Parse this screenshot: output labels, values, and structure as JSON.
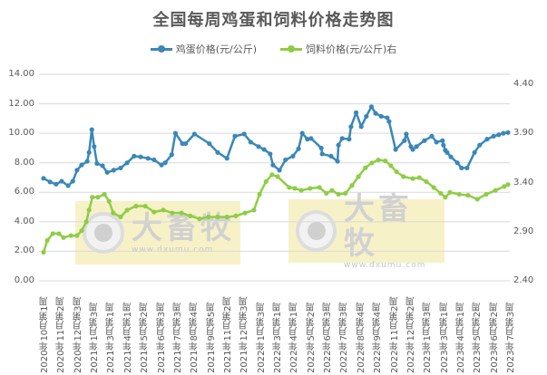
{
  "chart_data": {
    "type": "line",
    "title": "全国每周鸡蛋和饲料价格走势图",
    "xlabel": "",
    "ylabel": "",
    "left_axis": {
      "ticks": [
        "0.00",
        "2.00",
        "4.00",
        "6.00",
        "8.00",
        "10.00",
        "12.00",
        "14.00"
      ],
      "range": [
        0,
        14
      ]
    },
    "right_axis": {
      "ticks": [
        "2.40",
        "2.90",
        "3.40",
        "3.90",
        "4.40"
      ],
      "range": [
        2.4,
        4.4
      ]
    },
    "grid": true,
    "legend_position": "top",
    "categories": [
      "2020年10月第1周",
      "2020年11月第2周",
      "2020年12月第3周",
      "2021年1月第3周",
      "2021年3月第1周",
      "2021年4月第1周",
      "2021年5月第2周",
      "2021年6月第3周",
      "2021年7月第3周",
      "2021年8月第4周",
      "2021年9月第5周",
      "2021年11月第2周",
      "2021年12月第3周",
      "2022年1月第3周",
      "2022年3月第1周",
      "2022年4月第1周",
      "2022年5月第2周",
      "2022年6月第3周",
      "2022年7月第3周",
      "2022年8月第4周",
      "2022年9月第4周",
      "2022年11月第2周",
      "2022年12月第2周",
      "2023年1月第3周",
      "2023年3月第1周",
      "2023年4月第1周",
      "2023年5月第2周",
      "2023年6月第2周",
      "2023年7月第3周"
    ],
    "series": [
      {
        "name": "鸡蛋价格(元/公斤)",
        "axis": "left",
        "color": "#3a87b8",
        "x_frac": [
          0.0,
          0.014,
          0.027,
          0.039,
          0.053,
          0.063,
          0.072,
          0.082,
          0.094,
          0.098,
          0.104,
          0.109,
          0.115,
          0.127,
          0.137,
          0.151,
          0.166,
          0.18,
          0.195,
          0.209,
          0.225,
          0.238,
          0.254,
          0.262,
          0.276,
          0.284,
          0.299,
          0.306,
          0.325,
          0.357,
          0.375,
          0.395,
          0.412,
          0.432,
          0.446,
          0.463,
          0.475,
          0.488,
          0.494,
          0.508,
          0.521,
          0.537,
          0.549,
          0.557,
          0.568,
          0.576,
          0.598,
          0.6,
          0.619,
          0.633,
          0.635,
          0.643,
          0.658,
          0.662,
          0.673,
          0.684,
          0.695,
          0.706,
          0.715,
          0.727,
          0.74,
          0.744,
          0.758,
          0.777,
          0.781,
          0.791,
          0.795,
          0.803,
          0.82,
          0.836,
          0.846,
          0.859,
          0.861,
          0.865,
          0.869,
          0.877,
          0.891,
          0.9,
          0.912,
          0.928,
          0.939,
          0.955,
          0.969,
          0.98,
          0.99,
          1.0
        ],
        "values": [
          6.95,
          6.7,
          6.55,
          6.75,
          6.45,
          6.75,
          7.5,
          7.85,
          8.1,
          8.7,
          10.25,
          9.1,
          7.95,
          7.8,
          7.35,
          7.5,
          7.65,
          8.0,
          8.45,
          8.4,
          8.3,
          8.2,
          7.85,
          8.0,
          8.55,
          10.0,
          9.3,
          9.3,
          9.95,
          9.3,
          8.7,
          8.3,
          9.8,
          9.95,
          9.4,
          9.1,
          8.9,
          8.6,
          7.85,
          7.5,
          8.2,
          8.45,
          8.95,
          10.0,
          9.6,
          9.65,
          9.0,
          8.6,
          8.45,
          8.1,
          9.2,
          9.65,
          9.6,
          10.45,
          11.4,
          10.45,
          11.15,
          11.8,
          11.35,
          11.15,
          11.05,
          10.8,
          8.9,
          9.5,
          9.95,
          9.1,
          8.9,
          9.1,
          9.5,
          9.8,
          9.4,
          9.5,
          9.2,
          8.85,
          8.7,
          8.4,
          8.0,
          7.65,
          7.65,
          8.7,
          9.2,
          9.6,
          9.8,
          9.9,
          10.0,
          10.05
        ]
      },
      {
        "name": "饲料价格(元/公斤)右",
        "axis": "right",
        "color": "#8fcd45",
        "x_frac": [
          0.0,
          0.008,
          0.02,
          0.033,
          0.043,
          0.059,
          0.072,
          0.082,
          0.092,
          0.098,
          0.105,
          0.117,
          0.131,
          0.141,
          0.15,
          0.166,
          0.18,
          0.199,
          0.219,
          0.238,
          0.258,
          0.277,
          0.297,
          0.316,
          0.336,
          0.355,
          0.375,
          0.395,
          0.414,
          0.434,
          0.453,
          0.465,
          0.479,
          0.492,
          0.504,
          0.529,
          0.541,
          0.555,
          0.574,
          0.594,
          0.609,
          0.621,
          0.635,
          0.65,
          0.664,
          0.678,
          0.693,
          0.707,
          0.721,
          0.736,
          0.748,
          0.76,
          0.775,
          0.795,
          0.809,
          0.824,
          0.84,
          0.855,
          0.865,
          0.875,
          0.895,
          0.914,
          0.934,
          0.953,
          0.973,
          0.992,
          1.0
        ],
        "values": [
          2.69,
          2.81,
          2.88,
          2.88,
          2.84,
          2.86,
          2.86,
          2.91,
          3.0,
          3.12,
          3.25,
          3.25,
          3.28,
          3.21,
          3.09,
          3.05,
          3.12,
          3.16,
          3.16,
          3.1,
          3.12,
          3.09,
          3.09,
          3.06,
          3.03,
          3.05,
          3.05,
          3.05,
          3.06,
          3.09,
          3.12,
          3.28,
          3.41,
          3.48,
          3.46,
          3.35,
          3.34,
          3.32,
          3.34,
          3.35,
          3.29,
          3.32,
          3.28,
          3.29,
          3.37,
          3.46,
          3.55,
          3.6,
          3.63,
          3.62,
          3.57,
          3.51,
          3.46,
          3.44,
          3.45,
          3.41,
          3.35,
          3.29,
          3.25,
          3.3,
          3.28,
          3.27,
          3.23,
          3.28,
          3.32,
          3.36,
          3.38
        ]
      }
    ]
  },
  "legend": {
    "egg_label": "鸡蛋价格(元/公斤)",
    "feed_label": "饲料价格(元/公斤)右",
    "egg_color": "#3a87b8",
    "feed_color": "#8fcd45"
  },
  "watermark": {
    "brand": "大畜牧",
    "url": "www.dxumu.com"
  }
}
